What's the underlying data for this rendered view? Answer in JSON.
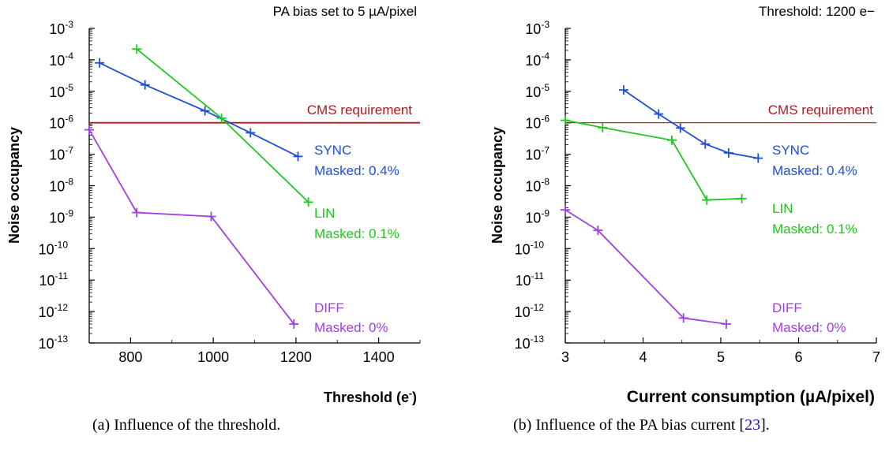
{
  "chart_data": [
    {
      "type": "line",
      "title": "PA bias set to 5 µA/pixel",
      "xlabel": "Threshold (e",
      "xlabel_sup": "-",
      "xlabel_close": ")",
      "ylabel": "Noise occupancy",
      "x_scale": "linear",
      "y_scale": "log",
      "xlim": [
        700,
        1500
      ],
      "ylim_exp": [
        -13,
        -3
      ],
      "x_ticks": [
        800,
        1000,
        1200,
        1400
      ],
      "x_ticklabels": [
        "800",
        "1000",
        "1200",
        "1400"
      ],
      "y_ticks_exp": [
        -3,
        -4,
        -5,
        -6,
        -7,
        -8,
        -9,
        -10,
        -11,
        -12,
        -13
      ],
      "y_tick_base": "10",
      "reference_line": {
        "label": "CMS requirement",
        "y": 1e-06,
        "color": "#b01a1a"
      },
      "grid": false,
      "series": [
        {
          "name": "SYNC",
          "masked_label": "Masked: 0.4%",
          "color": "#1f4fd6",
          "x": [
            725,
            835,
            980,
            1090,
            1205
          ],
          "y": [
            8e-05,
            1.6e-05,
            2.4e-06,
            4.8e-07,
            8.5e-08
          ]
        },
        {
          "name": "LIN",
          "masked_label": "Masked: 0.1%",
          "color": "#1ec81e",
          "x": [
            815,
            1020,
            1230
          ],
          "y": [
            0.00022,
            1.4e-06,
            3e-09
          ]
        },
        {
          "name": "DIFF",
          "masked_label": "Masked: 0%",
          "color": "#a040e0",
          "x": [
            700,
            815,
            995,
            1195
          ],
          "y": [
            6e-07,
            1.4e-09,
            1.05e-09,
            4e-13
          ]
        }
      ]
    },
    {
      "type": "line",
      "title": "Threshold: 1200 e−",
      "xlabel": "Current consumption (µA/pixel)",
      "ylabel": "Noise occupancy",
      "x_scale": "linear",
      "y_scale": "log",
      "xlim": [
        3,
        7
      ],
      "ylim_exp": [
        -13,
        -3
      ],
      "x_ticks": [
        3,
        4,
        5,
        6,
        7
      ],
      "x_ticklabels": [
        "3",
        "4",
        "5",
        "6",
        "7"
      ],
      "y_ticks_exp": [
        -3,
        -4,
        -5,
        -6,
        -7,
        -8,
        -9,
        -10,
        -11,
        -12,
        -13
      ],
      "y_tick_base": "10",
      "reference_line": {
        "label": "CMS requirement",
        "y": 1e-06,
        "color": "#b01a1a"
      },
      "grid": false,
      "series": [
        {
          "name": "SYNC",
          "masked_label": "Masked: 0.4%",
          "color": "#1f4fd6",
          "x": [
            3.75,
            4.2,
            4.48,
            4.8,
            5.1,
            5.48
          ],
          "y": [
            1.1e-05,
            1.9e-06,
            6.8e-07,
            2.1e-07,
            1.1e-07,
            7.5e-08
          ]
        },
        {
          "name": "LIN",
          "masked_label": "Masked: 0.1%",
          "color": "#1ec81e",
          "x": [
            3.0,
            3.48,
            4.37,
            4.82,
            5.27
          ],
          "y": [
            1.2e-06,
            7e-07,
            2.8e-07,
            3.5e-09,
            3.9e-09
          ]
        },
        {
          "name": "DIFF",
          "masked_label": "Masked: 0%",
          "color": "#a040e0",
          "x": [
            3.0,
            3.42,
            4.52,
            5.07
          ],
          "y": [
            1.7e-09,
            3.8e-10,
            6.2e-13,
            4e-13
          ]
        }
      ]
    }
  ],
  "captions": {
    "a": "(a) Influence of the threshold.",
    "b_text": "(b) Influence of the PA bias current [",
    "b_ref": "23",
    "b_end": "]."
  }
}
